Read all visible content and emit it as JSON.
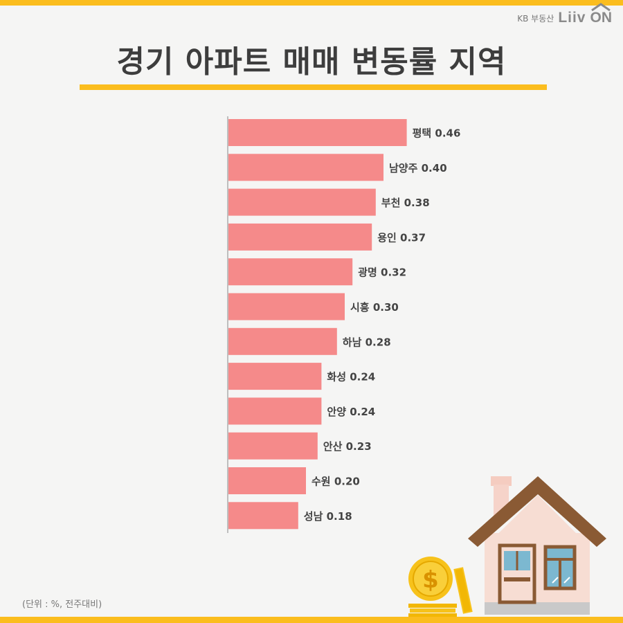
{
  "brand": {
    "kb": "KB 부동산",
    "liiv": "Liiv",
    "on": "ON"
  },
  "title": "경기 아파트 매매 변동률 지역",
  "footnote": "(단위 : %, 전주대비)",
  "colors": {
    "bar": "#f58a8a",
    "accent": "#fbbd1e",
    "roof": "#8a5a34"
  },
  "chart_data": {
    "type": "bar",
    "orientation": "horizontal",
    "title": "경기 아파트 매매 변동률 지역",
    "unit": "%",
    "categories": [
      "평택",
      "남양주",
      "부천",
      "용인",
      "광명",
      "시흥",
      "하남",
      "화성",
      "안양",
      "안산",
      "수원",
      "성남"
    ],
    "values": [
      0.46,
      0.4,
      0.38,
      0.37,
      0.32,
      0.3,
      0.28,
      0.24,
      0.24,
      0.23,
      0.2,
      0.18
    ],
    "labels": [
      "평택 0.46",
      "남양주 0.40",
      "부천 0.38",
      "용인 0.37",
      "광명 0.32",
      "시흥 0.30",
      "하남 0.28",
      "화성 0.24",
      "안양 0.24",
      "안산 0.23",
      "수원 0.20",
      "성남 0.18"
    ],
    "grid": false,
    "legend": "none"
  }
}
